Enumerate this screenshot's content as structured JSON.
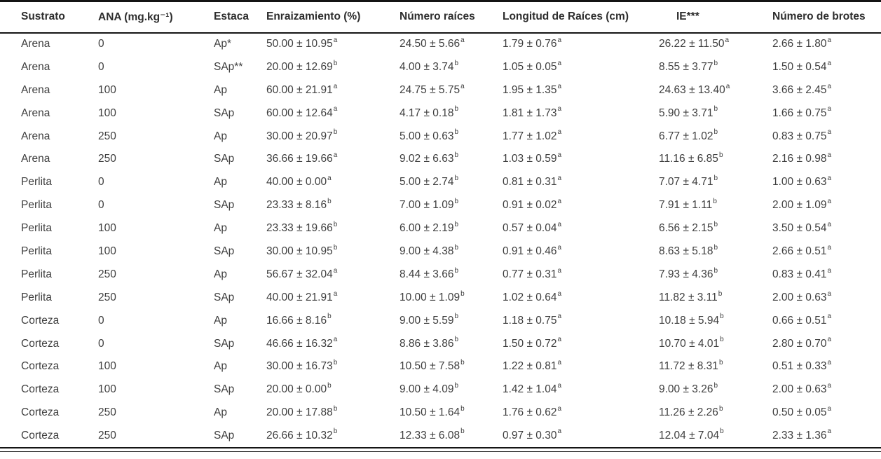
{
  "table": {
    "columns": [
      {
        "key": "sustrato",
        "label": "Sustrato"
      },
      {
        "key": "ana",
        "label": "ANA (mg.kg⁻¹)"
      },
      {
        "key": "estaca",
        "label": "Estaca"
      },
      {
        "key": "enraizamiento",
        "label": "Enraizamiento (%)"
      },
      {
        "key": "num_raices",
        "label": "Número raíces"
      },
      {
        "key": "longitud",
        "label": "Longitud de Raíces (cm)"
      },
      {
        "key": "ie",
        "label": "IE***"
      },
      {
        "key": "brotes",
        "label": "Número de brotes"
      }
    ],
    "rows": [
      {
        "sustrato": "Arena",
        "ana": "0",
        "estaca": "Ap*",
        "enraizamiento": {
          "text": "50.00 ± 10.95",
          "sig": "a"
        },
        "num_raices": {
          "text": "24.50 ± 5.66",
          "sig": "a"
        },
        "longitud": {
          "text": "1.79 ± 0.76",
          "sig": "a"
        },
        "ie": {
          "text": "26.22 ± 11.50",
          "sig": "a"
        },
        "brotes": {
          "text": "2.66 ± 1.80",
          "sig": "a"
        }
      },
      {
        "sustrato": "Arena",
        "ana": "0",
        "estaca": "SAp**",
        "enraizamiento": {
          "text": "20.00 ± 12.69",
          "sig": "b"
        },
        "num_raices": {
          "text": "4.00 ± 3.74",
          "sig": "b"
        },
        "longitud": {
          "text": "1.05 ± 0.05",
          "sig": "a"
        },
        "ie": {
          "text": "8.55 ± 3.77",
          "sig": "b"
        },
        "brotes": {
          "text": "1.50 ± 0.54",
          "sig": "a"
        }
      },
      {
        "sustrato": "Arena",
        "ana": "100",
        "estaca": "Ap",
        "enraizamiento": {
          "text": "60.00 ± 21.91",
          "sig": "a"
        },
        "num_raices": {
          "text": "24.75 ± 5.75",
          "sig": "a"
        },
        "longitud": {
          "text": "1.95 ± 1.35",
          "sig": "a"
        },
        "ie": {
          "text": "24.63 ± 13.40",
          "sig": "a"
        },
        "brotes": {
          "text": "3.66 ± 2.45",
          "sig": "a"
        }
      },
      {
        "sustrato": "Arena",
        "ana": "100",
        "estaca": "SAp",
        "enraizamiento": {
          "text": "60.00 ± 12.64",
          "sig": "a"
        },
        "num_raices": {
          "text": "4.17 ± 0.18",
          "sig": "b"
        },
        "longitud": {
          "text": "1.81 ± 1.73",
          "sig": "a"
        },
        "ie": {
          "text": "5.90 ± 3.71",
          "sig": "b"
        },
        "brotes": {
          "text": "1.66 ± 0.75",
          "sig": "a"
        }
      },
      {
        "sustrato": "Arena",
        "ana": "250",
        "estaca": "Ap",
        "enraizamiento": {
          "text": "30.00 ± 20.97",
          "sig": "b"
        },
        "num_raices": {
          "text": "5.00 ± 0.63",
          "sig": "b"
        },
        "longitud": {
          "text": "1.77 ± 1.02",
          "sig": "a"
        },
        "ie": {
          "text": "6.77 ± 1.02",
          "sig": "b"
        },
        "brotes": {
          "text": "0.83 ± 0.75",
          "sig": "a"
        }
      },
      {
        "sustrato": "Arena",
        "ana": "250",
        "estaca": "SAp",
        "enraizamiento": {
          "text": "36.66 ± 19.66",
          "sig": "a"
        },
        "num_raices": {
          "text": "9.02 ± 6.63",
          "sig": "b"
        },
        "longitud": {
          "text": "1.03 ± 0.59",
          "sig": "a"
        },
        "ie": {
          "text": "11.16 ± 6.85",
          "sig": "b"
        },
        "brotes": {
          "text": "2.16 ± 0.98",
          "sig": "a"
        }
      },
      {
        "sustrato": "Perlita",
        "ana": "0",
        "estaca": "Ap",
        "enraizamiento": {
          "text": "40.00 ± 0.00",
          "sig": "a"
        },
        "num_raices": {
          "text": "5.00 ± 2.74",
          "sig": "b"
        },
        "longitud": {
          "text": "0.81 ± 0.31",
          "sig": "a"
        },
        "ie": {
          "text": "7.07 ± 4.71",
          "sig": "b"
        },
        "brotes": {
          "text": "1.00 ± 0.63",
          "sig": "a"
        }
      },
      {
        "sustrato": "Perlita",
        "ana": "0",
        "estaca": "SAp",
        "enraizamiento": {
          "text": "23.33 ± 8.16",
          "sig": "b"
        },
        "num_raices": {
          "text": "7.00 ± 1.09",
          "sig": "b"
        },
        "longitud": {
          "text": "0.91 ± 0.02",
          "sig": "a"
        },
        "ie": {
          "text": "7.91 ± 1.11",
          "sig": "b"
        },
        "brotes": {
          "text": "2.00 ± 1.09",
          "sig": "a"
        }
      },
      {
        "sustrato": "Perlita",
        "ana": "100",
        "estaca": "Ap",
        "enraizamiento": {
          "text": "23.33 ± 19.66",
          "sig": "b"
        },
        "num_raices": {
          "text": "6.00 ± 2.19",
          "sig": "b"
        },
        "longitud": {
          "text": "0.57 ± 0.04",
          "sig": "a"
        },
        "ie": {
          "text": "6.56 ± 2.15",
          "sig": "b"
        },
        "brotes": {
          "text": "3.50 ± 0.54",
          "sig": "a"
        }
      },
      {
        "sustrato": "Perlita",
        "ana": "100",
        "estaca": "SAp",
        "enraizamiento": {
          "text": "30.00 ± 10.95",
          "sig": "b"
        },
        "num_raices": {
          "text": "9.00 ± 4.38",
          "sig": "b"
        },
        "longitud": {
          "text": "0.91 ± 0.46",
          "sig": "a"
        },
        "ie": {
          "text": "8.63 ± 5.18",
          "sig": "b"
        },
        "brotes": {
          "text": "2.66 ± 0.51",
          "sig": "a"
        }
      },
      {
        "sustrato": "Perlita",
        "ana": "250",
        "estaca": "Ap",
        "enraizamiento": {
          "text": "56.67 ± 32.04",
          "sig": "a"
        },
        "num_raices": {
          "text": "8.44 ± 3.66",
          "sig": "b"
        },
        "longitud": {
          "text": "0.77 ± 0.31",
          "sig": "a"
        },
        "ie": {
          "text": "7.93 ± 4.36",
          "sig": "b"
        },
        "brotes": {
          "text": "0.83 ± 0.41",
          "sig": "a"
        }
      },
      {
        "sustrato": "Perlita",
        "ana": "250",
        "estaca": "SAp",
        "enraizamiento": {
          "text": "40.00 ± 21.91",
          "sig": "a"
        },
        "num_raices": {
          "text": "10.00 ± 1.09",
          "sig": "b"
        },
        "longitud": {
          "text": "1.02 ± 0.64",
          "sig": "a"
        },
        "ie": {
          "text": "11.82 ± 3.11",
          "sig": "b"
        },
        "brotes": {
          "text": "2.00 ± 0.63",
          "sig": "a"
        }
      },
      {
        "sustrato": "Corteza",
        "ana": "0",
        "estaca": "Ap",
        "enraizamiento": {
          "text": "16.66 ± 8.16",
          "sig": "b"
        },
        "num_raices": {
          "text": "9.00 ± 5.59",
          "sig": "b"
        },
        "longitud": {
          "text": "1.18 ± 0.75",
          "sig": "a"
        },
        "ie": {
          "text": "10.18 ± 5.94",
          "sig": "b"
        },
        "brotes": {
          "text": "0.66 ± 0.51",
          "sig": "a"
        }
      },
      {
        "sustrato": "Corteza",
        "ana": "0",
        "estaca": "SAp",
        "enraizamiento": {
          "text": "46.66 ± 16.32",
          "sig": "a"
        },
        "num_raices": {
          "text": "8.86 ± 3.86",
          "sig": "b"
        },
        "longitud": {
          "text": "1.50 ± 0.72",
          "sig": "a"
        },
        "ie": {
          "text": "10.70 ± 4.01",
          "sig": "b"
        },
        "brotes": {
          "text": "2.80 ± 0.70",
          "sig": "a"
        }
      },
      {
        "sustrato": "Corteza",
        "ana": "100",
        "estaca": "Ap",
        "enraizamiento": {
          "text": "30.00 ± 16.73",
          "sig": "b"
        },
        "num_raices": {
          "text": "10.50 ± 7.58",
          "sig": "b"
        },
        "longitud": {
          "text": "1.22 ± 0.81",
          "sig": "a"
        },
        "ie": {
          "text": "11.72 ± 8.31",
          "sig": "b"
        },
        "brotes": {
          "text": "0.51 ± 0.33",
          "sig": "a"
        }
      },
      {
        "sustrato": "Corteza",
        "ana": "100",
        "estaca": "SAp",
        "enraizamiento": {
          "text": "20.00 ± 0.00",
          "sig": "b"
        },
        "num_raices": {
          "text": "9.00 ± 4.09",
          "sig": "b"
        },
        "longitud": {
          "text": "1.42 ± 1.04",
          "sig": "a"
        },
        "ie": {
          "text": "9.00 ± 3.26",
          "sig": "b"
        },
        "brotes": {
          "text": "2.00 ± 0.63",
          "sig": "a"
        }
      },
      {
        "sustrato": "Corteza",
        "ana": "250",
        "estaca": "Ap",
        "enraizamiento": {
          "text": "20.00 ± 17.88",
          "sig": "b"
        },
        "num_raices": {
          "text": "10.50 ± 1.64",
          "sig": "b"
        },
        "longitud": {
          "text": "1.76 ± 0.62",
          "sig": "a"
        },
        "ie": {
          "text": "11.26 ± 2.26",
          "sig": "b"
        },
        "brotes": {
          "text": "0.50 ± 0.05",
          "sig": "a"
        }
      },
      {
        "sustrato": "Corteza",
        "ana": "250",
        "estaca": "SAp",
        "enraizamiento": {
          "text": "26.66 ± 10.32",
          "sig": "b"
        },
        "num_raices": {
          "text": "12.33 ± 6.08",
          "sig": "b"
        },
        "longitud": {
          "text": "0.97 ± 0.30",
          "sig": "a"
        },
        "ie": {
          "text": "12.04 ± 7.04",
          "sig": "b"
        },
        "brotes": {
          "text": "2.33 ± 1.36",
          "sig": "a"
        }
      }
    ]
  },
  "colors": {
    "rule": "#141414",
    "header_text": "#2d2d2d",
    "body_text": "#3e3e3e",
    "background": "#ffffff"
  }
}
